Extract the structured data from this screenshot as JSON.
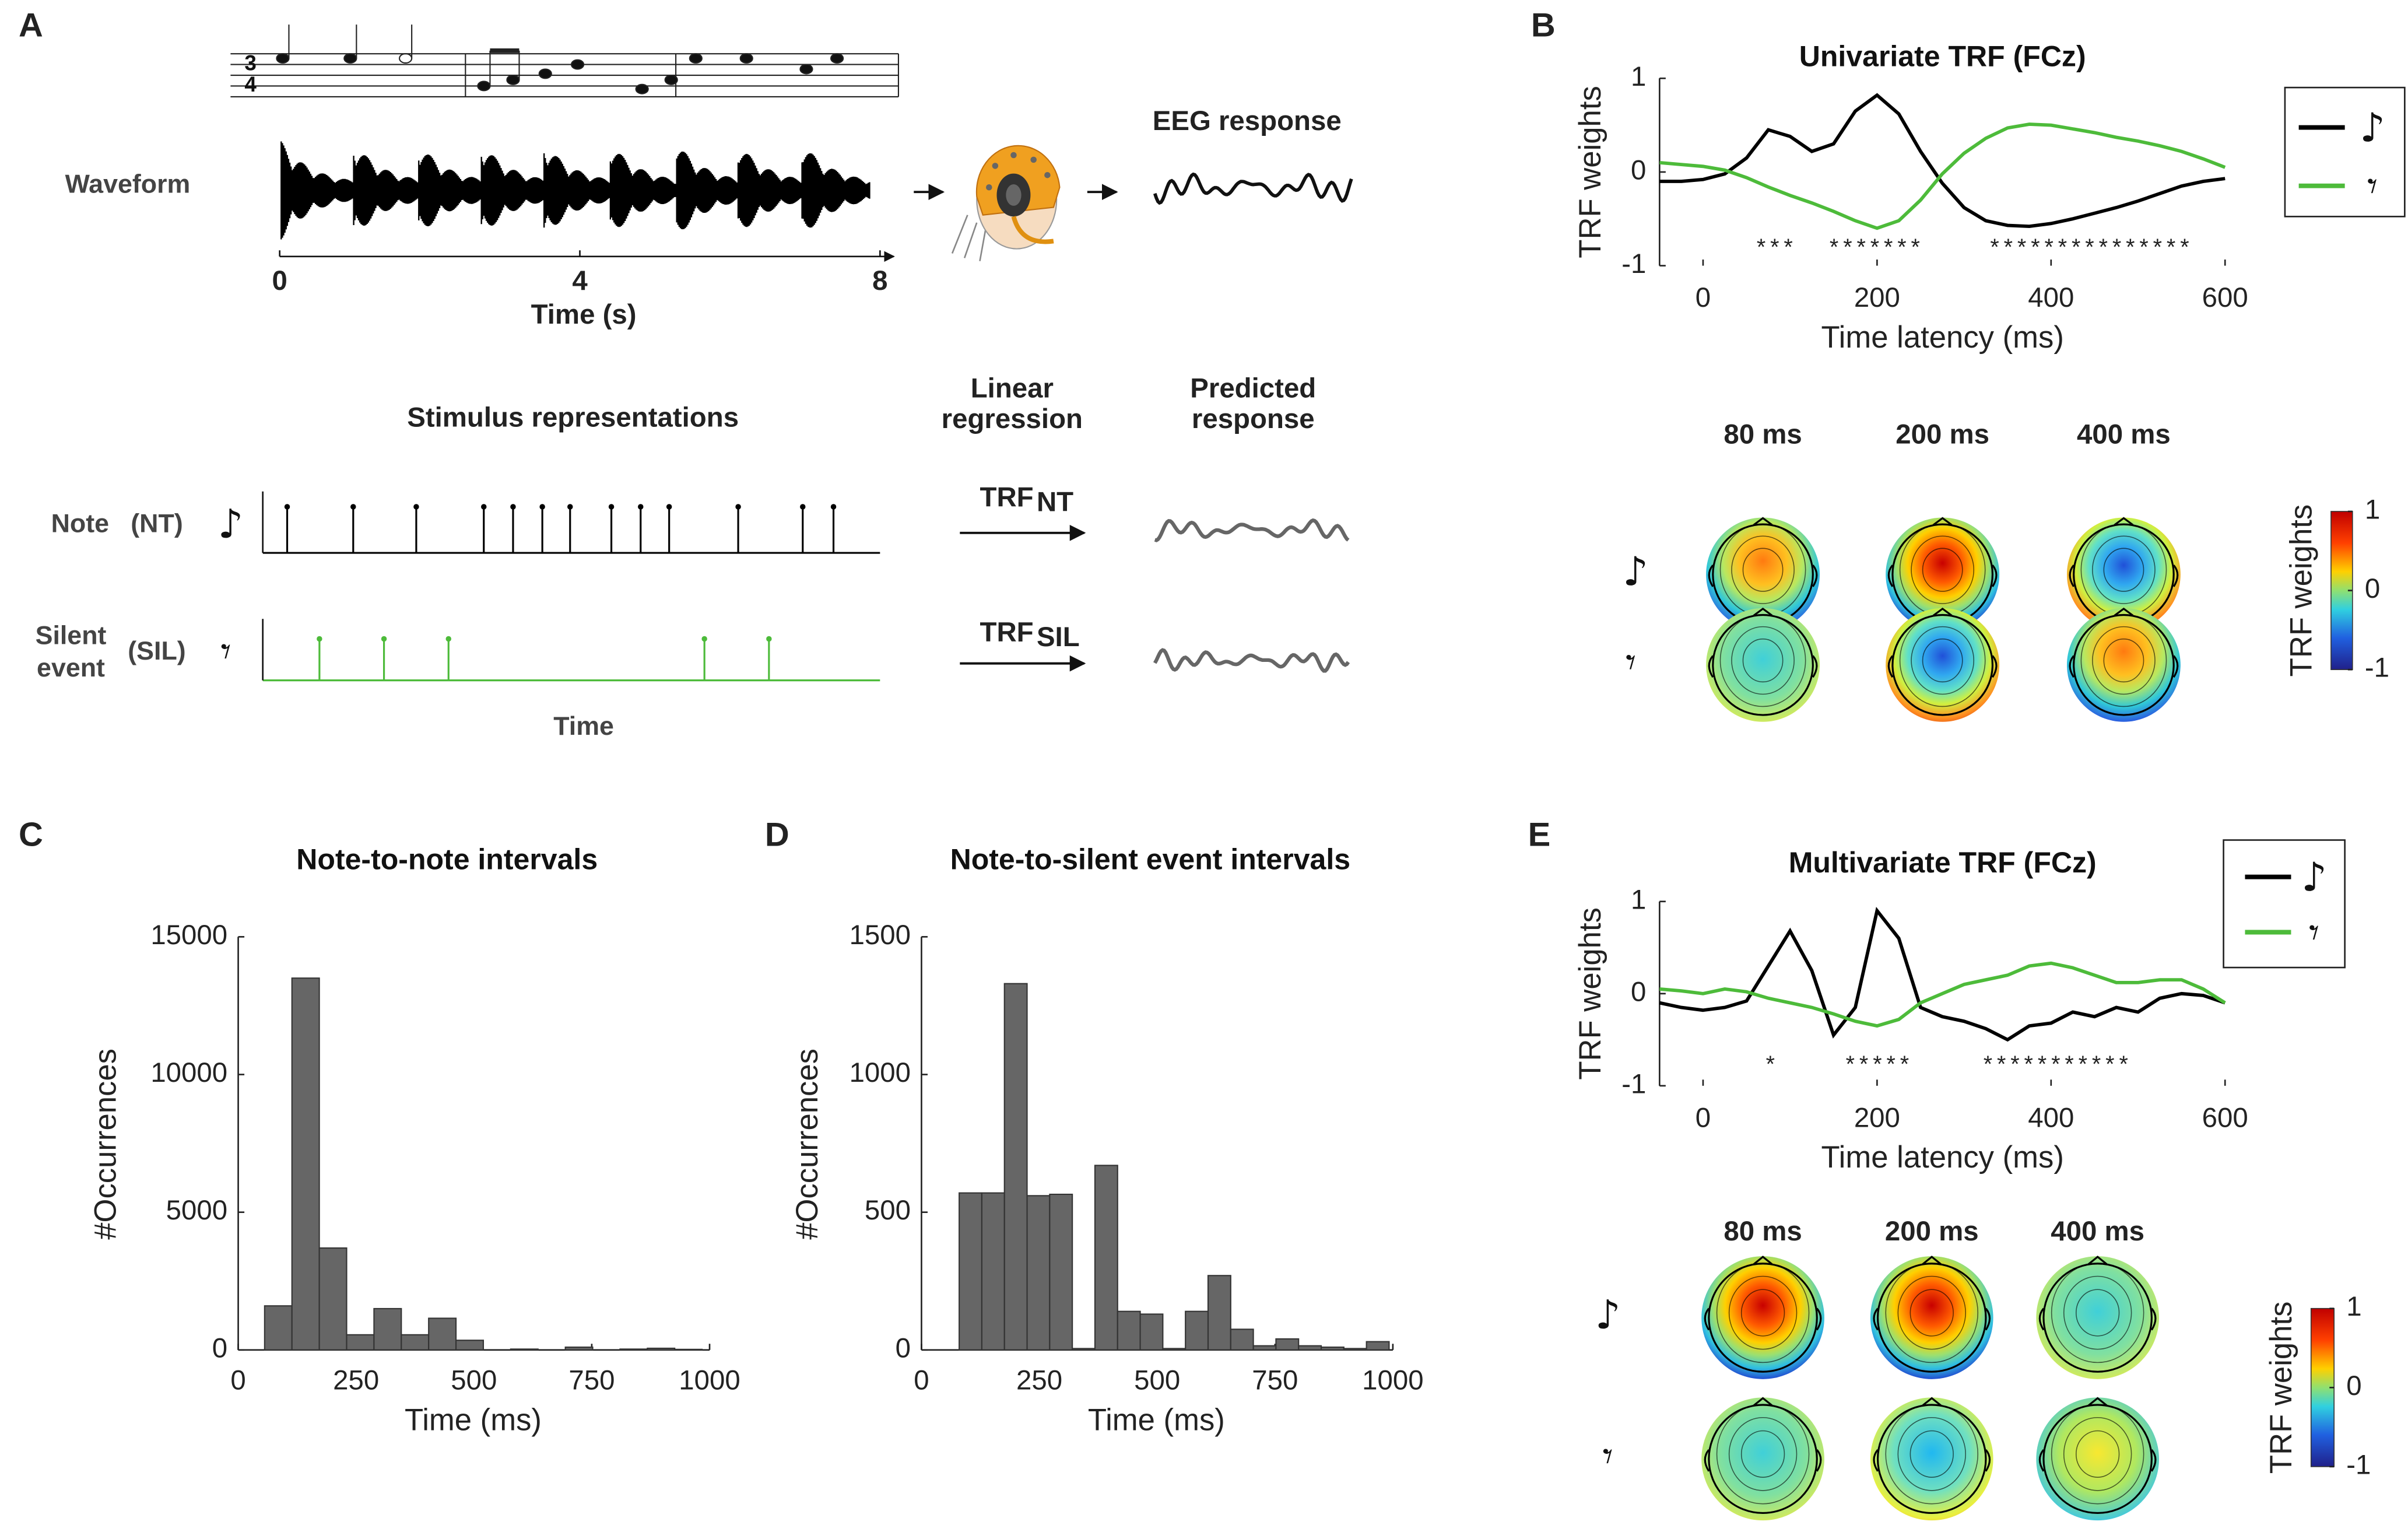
{
  "panel_labels": [
    "A",
    "B",
    "C",
    "D",
    "E"
  ],
  "stimulus": {
    "waveform_label": "Waveform",
    "xlim": [
      0,
      8
    ],
    "xticks": [
      0,
      4,
      8
    ],
    "xlabel": "Time (s)",
    "eeg_label": "EEG response",
    "representations_title": "Stimulus representations",
    "regression_label": [
      "Linear",
      "regression"
    ],
    "predicted_label": [
      "Predicted",
      "response"
    ],
    "note_label": "Note",
    "note_code": "(NT)",
    "silent_label": [
      "Silent",
      "event"
    ],
    "silent_code": "(SIL)",
    "trf": [
      {
        "text": "TRF",
        "sub": "NT"
      },
      {
        "text": "TRF",
        "sub": "SIL"
      }
    ],
    "time_label": "Time",
    "note_events": [
      0.1,
      0.98,
      1.82,
      2.72,
      3.11,
      3.5,
      3.87,
      4.42,
      4.81,
      5.19,
      6.11,
      6.97,
      7.38
    ],
    "silent_events": [
      0.53,
      1.39,
      2.25,
      5.66,
      6.52
    ],
    "note_color": "#000000",
    "silent_color": "#4dbb3a"
  },
  "chart_data": [
    {
      "type": "line",
      "title": "Univariate TRF (FCz)",
      "xlabel": "Time latency (ms)",
      "ylabel": "TRF weights",
      "x": [
        -50,
        -25,
        0,
        25,
        50,
        75,
        100,
        125,
        150,
        175,
        200,
        225,
        250,
        275,
        300,
        325,
        350,
        375,
        400,
        425,
        450,
        475,
        500,
        525,
        550,
        575,
        600
      ],
      "xlim": [
        -50,
        600
      ],
      "xticks": [
        0,
        200,
        400,
        600
      ],
      "ylim": [
        -1,
        1
      ],
      "yticks": [
        -1,
        0,
        1
      ],
      "series": [
        {
          "name": "♪",
          "color": "#000000",
          "values": [
            -0.1,
            -0.1,
            -0.08,
            -0.02,
            0.15,
            0.45,
            0.38,
            0.22,
            0.3,
            0.65,
            0.82,
            0.62,
            0.22,
            -0.12,
            -0.38,
            -0.52,
            -0.57,
            -0.58,
            -0.55,
            -0.5,
            -0.44,
            -0.38,
            -0.31,
            -0.23,
            -0.15,
            -0.1,
            -0.07
          ]
        },
        {
          "name": "𝄾",
          "color": "#4dbb3a",
          "values": [
            0.1,
            0.08,
            0.06,
            0.02,
            -0.06,
            -0.16,
            -0.25,
            -0.33,
            -0.42,
            -0.52,
            -0.6,
            -0.52,
            -0.3,
            -0.02,
            0.2,
            0.36,
            0.47,
            0.51,
            0.5,
            0.46,
            0.42,
            0.37,
            0.33,
            0.28,
            0.22,
            0.14,
            0.05
          ]
        }
      ],
      "annotations": [
        {
          "text": "***",
          "x": 85
        },
        {
          "text": "*******",
          "x": 200
        },
        {
          "text": "***************",
          "x": 447
        }
      ],
      "legend": "outside right",
      "topomap_titles": [
        "80 ms",
        "200 ms",
        "400 ms"
      ],
      "colorbar": {
        "label": "TRF weights",
        "clim": [
          -1,
          1
        ],
        "ticks": [
          -1,
          0,
          1
        ]
      }
    },
    {
      "type": "line",
      "title": "Multivariate TRF (FCz)",
      "xlabel": "Time latency (ms)",
      "ylabel": "TRF weights",
      "x": [
        -50,
        -25,
        0,
        25,
        50,
        75,
        100,
        125,
        150,
        175,
        200,
        225,
        250,
        275,
        300,
        325,
        350,
        375,
        400,
        425,
        450,
        475,
        500,
        525,
        550,
        575,
        600
      ],
      "xlim": [
        -50,
        600
      ],
      "xticks": [
        0,
        200,
        400,
        600
      ],
      "ylim": [
        -1,
        1
      ],
      "yticks": [
        -1,
        0,
        1
      ],
      "series": [
        {
          "name": "♪",
          "color": "#000000",
          "values": [
            -0.1,
            -0.15,
            -0.18,
            -0.15,
            -0.08,
            0.3,
            0.68,
            0.25,
            -0.45,
            -0.15,
            0.9,
            0.6,
            -0.15,
            -0.25,
            -0.3,
            -0.38,
            -0.5,
            -0.35,
            -0.32,
            -0.2,
            -0.25,
            -0.15,
            -0.2,
            -0.05,
            0.0,
            -0.02,
            -0.1
          ]
        },
        {
          "name": "𝄾",
          "color": "#4dbb3a",
          "values": [
            0.05,
            0.03,
            0.0,
            0.05,
            0.02,
            -0.05,
            -0.1,
            -0.15,
            -0.22,
            -0.3,
            -0.35,
            -0.28,
            -0.1,
            0.0,
            0.1,
            0.15,
            0.2,
            0.3,
            0.33,
            0.28,
            0.2,
            0.12,
            0.12,
            0.15,
            0.15,
            0.05,
            -0.1
          ]
        }
      ],
      "annotations": [
        {
          "text": "*",
          "x": 80
        },
        {
          "text": "*****",
          "x": 203
        },
        {
          "text": "***********",
          "x": 408
        }
      ],
      "legend": "upper right",
      "topomap_titles": [
        "80 ms",
        "200 ms",
        "400 ms"
      ],
      "colorbar": {
        "label": "TRF weights",
        "clim": [
          -1,
          1
        ],
        "ticks": [
          -1,
          0,
          1
        ]
      }
    },
    {
      "type": "histogram",
      "title": "Note-to-note intervals",
      "xlabel": "Time (ms)",
      "ylabel": "#Occurrences",
      "bins": [
        56,
        114,
        172,
        230,
        288,
        346,
        404,
        462,
        520,
        578,
        636,
        694,
        752,
        810,
        868,
        926,
        984
      ],
      "values": [
        1600,
        13500,
        3700,
        550,
        1500,
        550,
        1150,
        350,
        0,
        30,
        0,
        100,
        0,
        30,
        60,
        20
      ],
      "xlim": [
        0,
        1000
      ],
      "xticks": [
        0,
        250,
        500,
        750,
        1000
      ],
      "ylim": [
        0,
        15000
      ],
      "yticks": [
        0,
        5000,
        10000,
        15000
      ],
      "color": "#666666"
    },
    {
      "type": "histogram",
      "title": "Note-to-silent event intervals",
      "xlabel": "Time (ms)",
      "ylabel": "#Occurrences",
      "bins": [
        80,
        128,
        176,
        224,
        272,
        320,
        368,
        416,
        464,
        512,
        560,
        608,
        656,
        704,
        752,
        800,
        848,
        896,
        944,
        992
      ],
      "values": [
        570,
        570,
        1330,
        560,
        565,
        5,
        670,
        140,
        130,
        5,
        140,
        270,
        75,
        15,
        40,
        15,
        10,
        5,
        30
      ],
      "xlim": [
        0,
        1000
      ],
      "xticks": [
        0,
        250,
        500,
        750,
        1000
      ],
      "ylim": [
        0,
        1500
      ],
      "yticks": [
        0,
        500,
        1000,
        1500
      ],
      "color": "#666666"
    }
  ]
}
